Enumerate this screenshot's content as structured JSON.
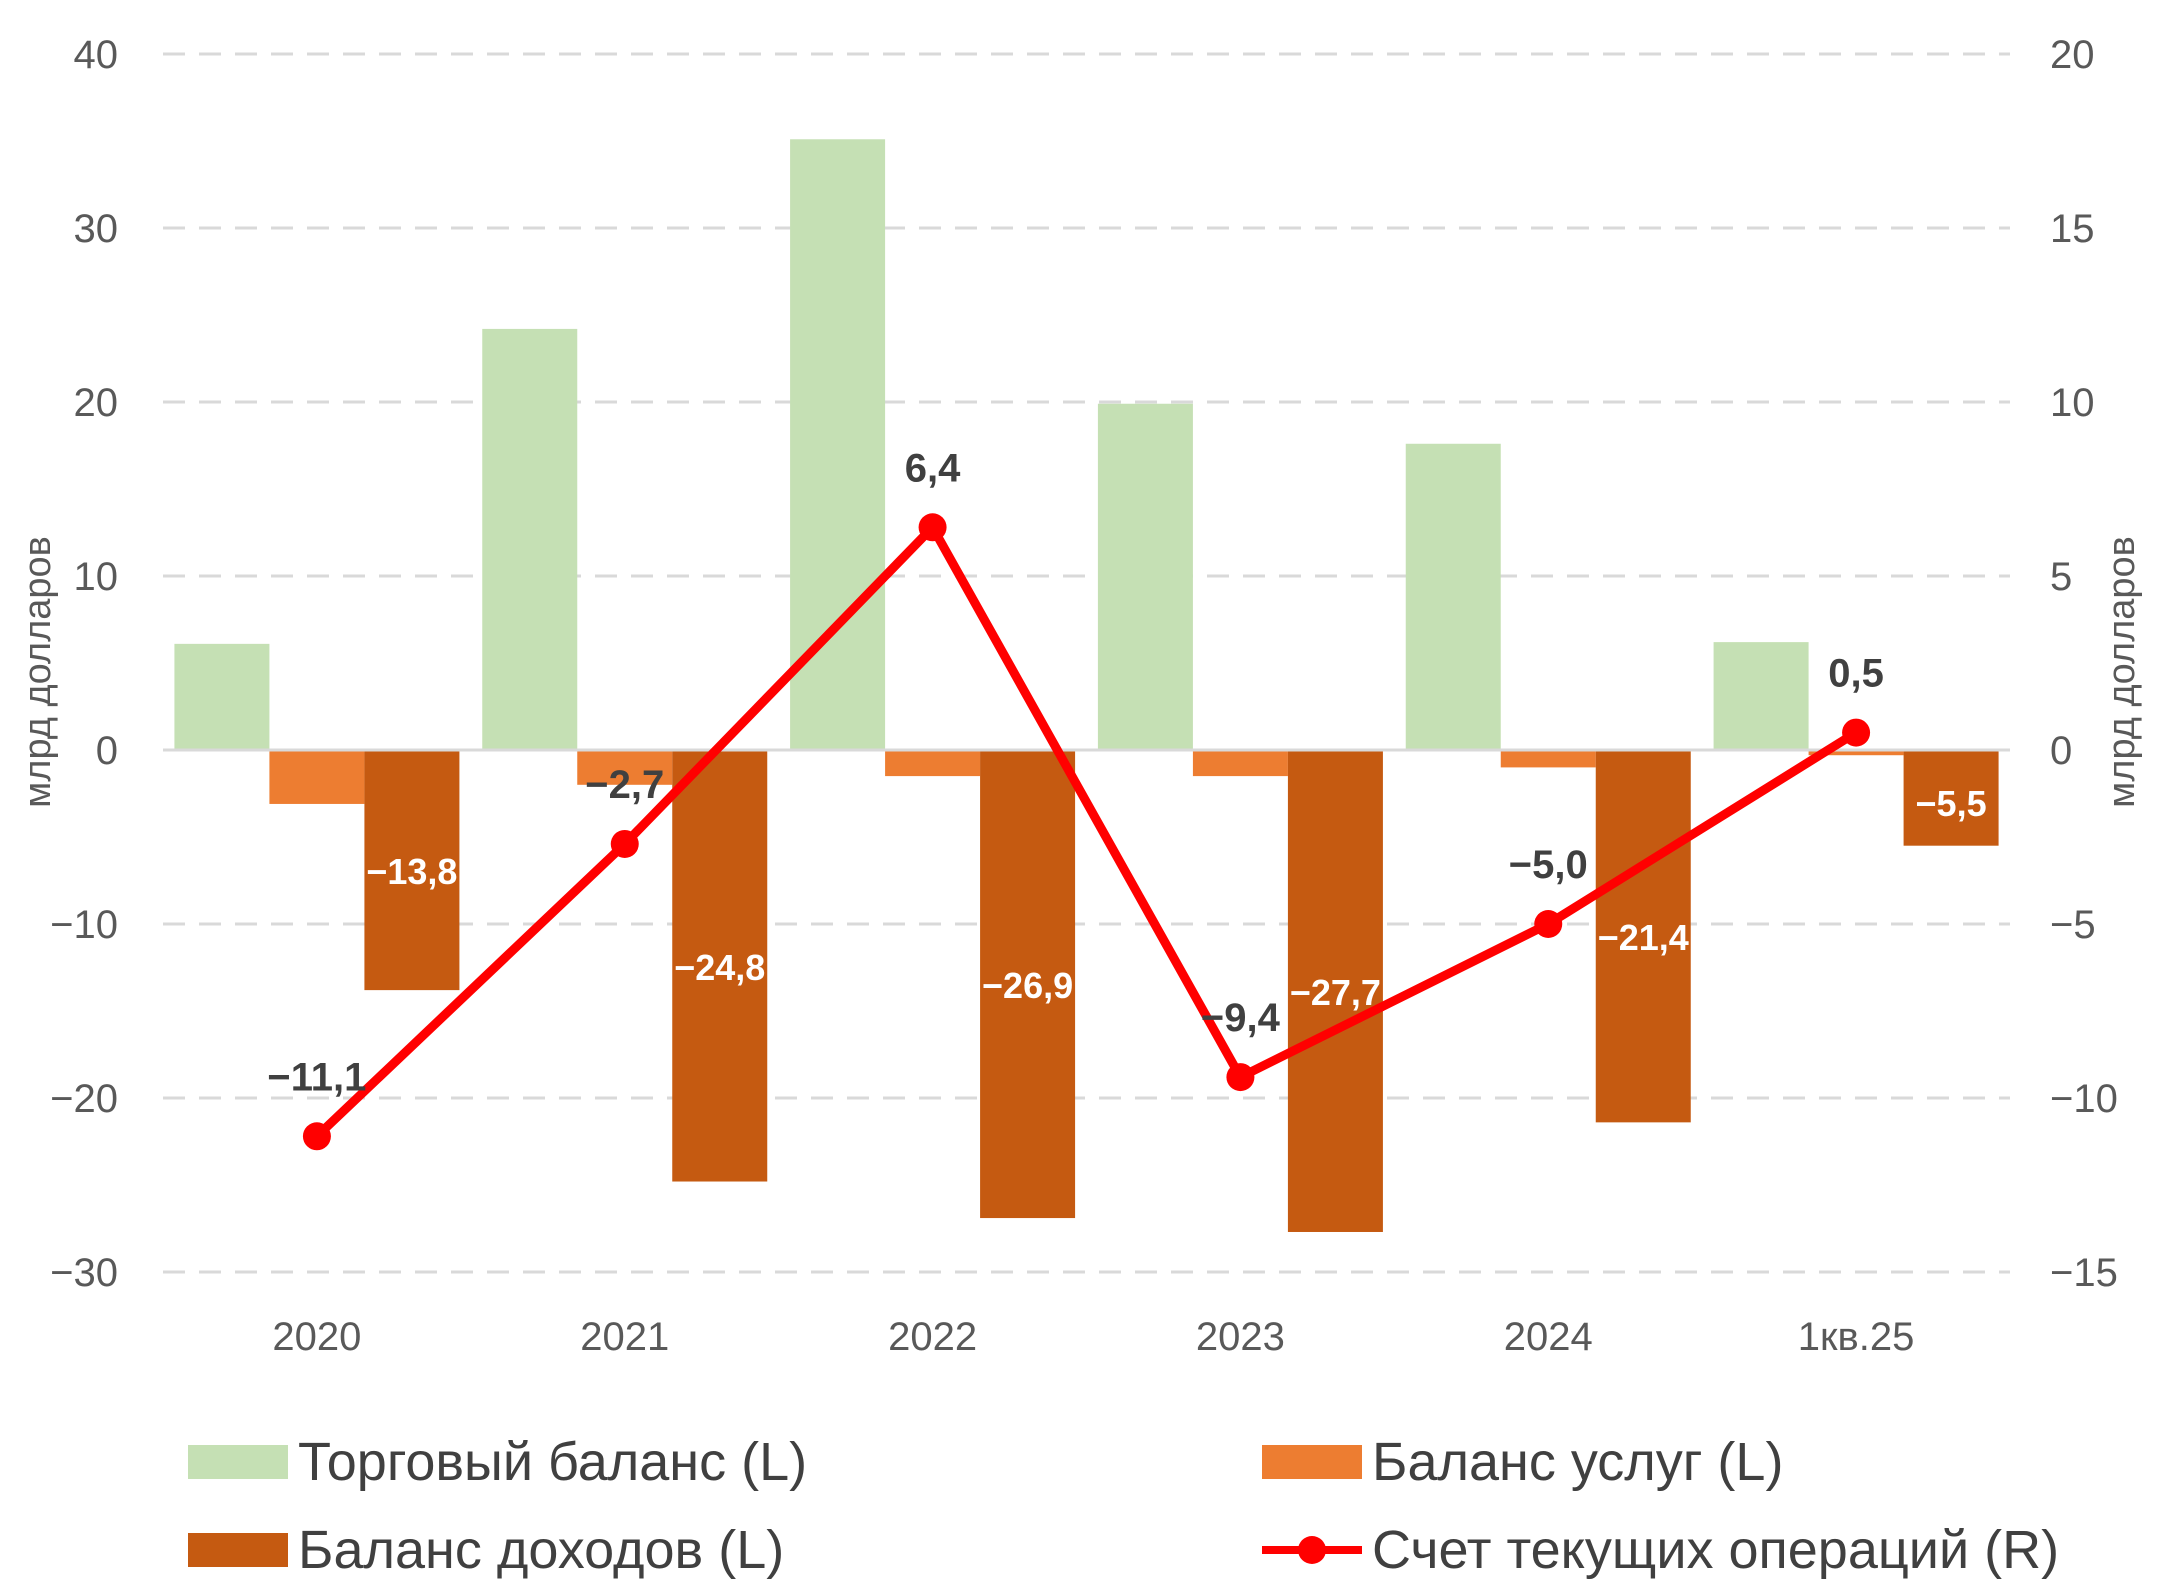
{
  "chart_data": {
    "type": "bar",
    "categories": [
      "2020",
      "2021",
      "2022",
      "2023",
      "2024",
      "1кв.25"
    ],
    "series": [
      {
        "name": "Торговый баланс (L)",
        "kind": "bar",
        "axis": "left",
        "color": "#c5e0b4",
        "values": [
          6.1,
          24.2,
          35.1,
          19.9,
          17.6,
          6.2
        ]
      },
      {
        "name": "Баланс услуг (L)",
        "kind": "bar",
        "axis": "left",
        "color": "#ed7d31",
        "values": [
          -3.1,
          -2.0,
          -1.5,
          -1.5,
          -1.0,
          -0.3
        ]
      },
      {
        "name": "Баланс доходов (L)",
        "kind": "bar",
        "axis": "left",
        "color": "#c55a11",
        "values": [
          -13.8,
          -24.8,
          -26.9,
          -27.7,
          -21.4,
          -5.5
        ],
        "labels": [
          "-13,8",
          "-24,8",
          "-26,9",
          "-27,7",
          "-21,4",
          "-5,5"
        ]
      },
      {
        "name": "Счет текущих операций (R)",
        "kind": "line",
        "axis": "right",
        "color": "#ff0000",
        "values": [
          -11.1,
          -2.7,
          6.4,
          -9.4,
          -5.0,
          0.5
        ],
        "labels": [
          "-11,1",
          "-2,7",
          "6,4",
          "-9,4",
          "-5,0",
          "0,5"
        ]
      }
    ],
    "y_left": {
      "label": "млрд долларов",
      "ylim": [
        -30,
        40
      ],
      "ticks": [
        40,
        30,
        20,
        10,
        0,
        -10,
        -20,
        -30
      ],
      "tick_labels": [
        "40",
        "30",
        "20",
        "10",
        "0",
        "-10",
        "-20",
        "-30"
      ]
    },
    "y_right": {
      "label": "млрд долларов",
      "ylim": [
        -15,
        20
      ],
      "ticks": [
        20,
        15,
        10,
        5,
        0,
        -5,
        -10,
        -15
      ],
      "tick_labels": [
        "20",
        "15",
        "10",
        "5",
        "0",
        "-5",
        "-10",
        "-15"
      ]
    },
    "grid": true,
    "grid_style": "dashed",
    "legend_position": "bottom"
  }
}
